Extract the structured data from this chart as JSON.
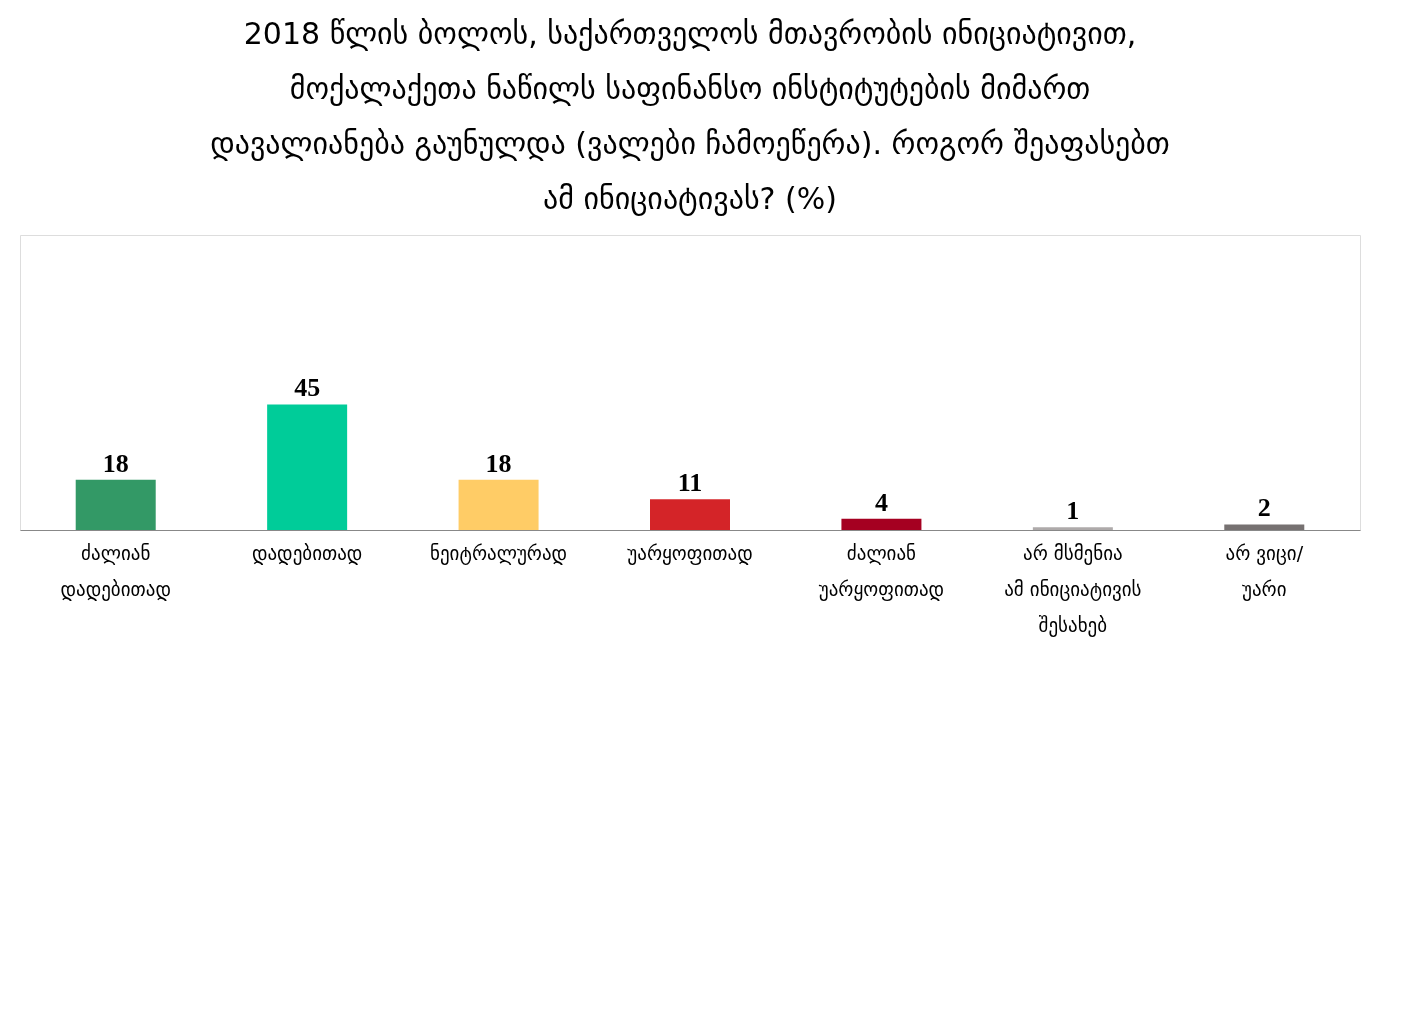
{
  "chart_data": {
    "type": "bar",
    "title": "2018 წლის ბოლოს, საქართველოს მთავრობის ინიციატივით, მოქალაქეთა ნაწილს საფინანსო ინსტიტუტების მიმართ დავალიანება გაუნულდა (ვალები ჩამოეწერა). როგორ შეაფასებთ ამ ინიციატივას? (%)",
    "categories": [
      "ძალიან\nდადებითად",
      "დადებითად",
      "ნეიტრალურად",
      "უარყოფითად",
      "ძალიან\nუარყოფითად",
      "არ მსმენია\nამ ინიციატივის\nშესახებ",
      "არ ვიცი/\nუარი"
    ],
    "values": [
      18,
      45,
      18,
      11,
      4,
      1,
      2
    ],
    "colors": [
      "#339966",
      "#00cc99",
      "#ffcc66",
      "#d42428",
      "#a50021",
      "#aeaaaa",
      "#767171"
    ],
    "data_labels": true
  }
}
